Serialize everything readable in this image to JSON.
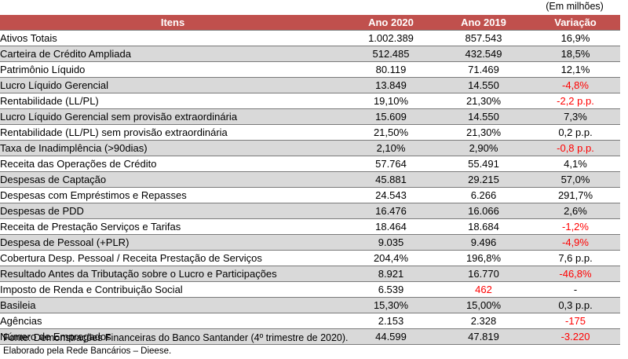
{
  "unit_note": "(Em milhões)",
  "headers": {
    "item": "Itens",
    "y2020": "Ano 2020",
    "y2019": "Ano 2019",
    "change": "Variação"
  },
  "rows": [
    {
      "item": "Ativos Totais",
      "y2020": "1.002.389",
      "y2019": "857.543",
      "change": "16,9%"
    },
    {
      "item": "Carteira de Crédito Ampliada",
      "y2020": "512.485",
      "y2019": "432.549",
      "change": "18,5%"
    },
    {
      "item": "Patrimônio Líquido",
      "y2020": "80.119",
      "y2019": "71.469",
      "change": "12,1%"
    },
    {
      "item": "Lucro Líquido Gerencial",
      "y2020": "13.849",
      "y2019": "14.550",
      "change": "-4,8%"
    },
    {
      "item": "Rentabilidade (LL/PL)",
      "y2020": "19,10%",
      "y2019": "21,30%",
      "change": "-2,2 p.p."
    },
    {
      "item": "Lucro Líquido Gerencial sem provisão extraordinária",
      "y2020": "15.609",
      "y2019": "14.550",
      "change": "7,3%"
    },
    {
      "item": "Rentabilidade (LL/PL) sem provisão extraordinária",
      "y2020": "21,50%",
      "y2019": "21,30%",
      "change": "0,2 p.p."
    },
    {
      "item": "Taxa de Inadimplência (>90dias)",
      "y2020": "2,10%",
      "y2019": "2,90%",
      "change": "-0,8 p.p."
    },
    {
      "item": "Receita das Operações de Crédito",
      "y2020": "57.764",
      "y2019": "55.491",
      "change": "4,1%"
    },
    {
      "item": "Despesas de Captação",
      "y2020": "45.881",
      "y2019": "29.215",
      "change": "57,0%"
    },
    {
      "item": "Despesas com Empréstimos e Repasses",
      "y2020": "24.543",
      "y2019": "6.266",
      "change": "291,7%"
    },
    {
      "item": "Despesas de PDD",
      "y2020": "16.476",
      "y2019": "16.066",
      "change": "2,6%"
    },
    {
      "item": "Receita de Prestação Serviços e Tarifas",
      "y2020": "18.464",
      "y2019": "18.684",
      "change": "-1,2%"
    },
    {
      "item": "Despesa de Pessoal (+PLR)",
      "y2020": "9.035",
      "y2019": "9.496",
      "change": "-4,9%"
    },
    {
      "item": "Cobertura Desp. Pessoal / Receita Prestação de Serviços",
      "y2020": "204,4%",
      "y2019": "196,8%",
      "change": "7,6 p.p."
    },
    {
      "item": "Resultado Antes da Tributação sobre o Lucro e Participações",
      "y2020": "8.921",
      "y2019": "16.770",
      "change": "-46,8%"
    },
    {
      "item": "Imposto de Renda e Contribuição Social",
      "y2020": "6.539",
      "y2019": "462",
      "change": "-"
    },
    {
      "item": "Basileia",
      "y2020": "15,30%",
      "y2019": "15,00%",
      "change": "0,3 p.p."
    },
    {
      "item": "Agências",
      "y2020": "2.153",
      "y2019": "2.328",
      "change": "-175"
    },
    {
      "item": "Número de Empregados",
      "y2020": "44.599",
      "y2019": "47.819",
      "change": "-3.220"
    }
  ],
  "negative_color": "#ff0000",
  "header_color": "#c0504d",
  "stripe_color": "#d9d9d9",
  "source": "Fonte: Demonstrações Financeiras do Banco Santander (4º trimestre de 2020).",
  "credit": "Elaborado pela Rede Bancários – Dieese."
}
